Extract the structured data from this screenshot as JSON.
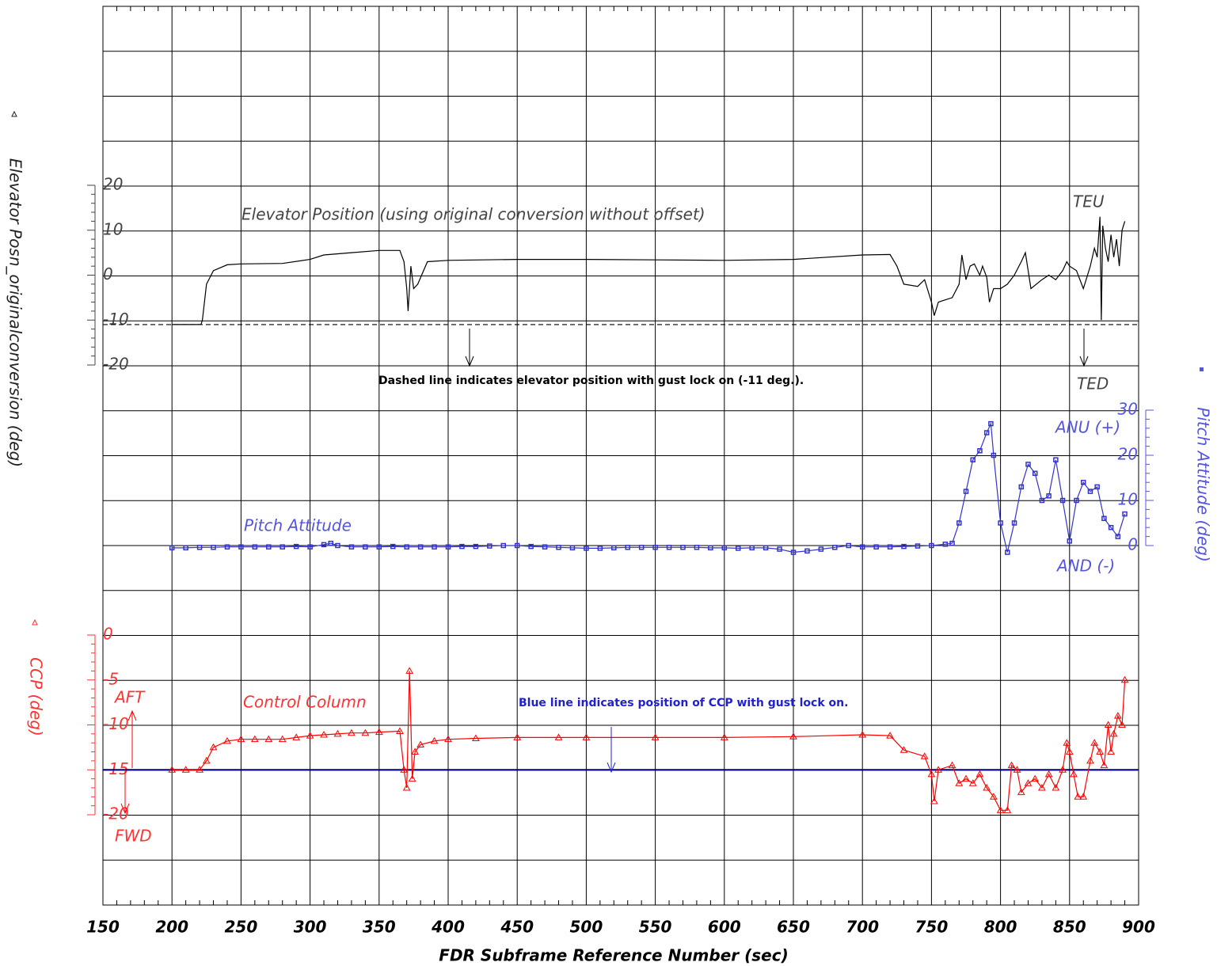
{
  "chart_data": {
    "type": "line",
    "x_label": "FDR Subframe Reference Number (sec)",
    "y_label": "Elevator Posn_originalconversion (deg)",
    "y2_label": "Pitch Attitude (deg)",
    "y3_label": "CCP (deg)",
    "xlim": [
      150,
      900
    ],
    "xticks": [
      150,
      200,
      250,
      300,
      350,
      400,
      450,
      500,
      550,
      600,
      650,
      700,
      750,
      800,
      850,
      900
    ],
    "ylim": [
      -20,
      20
    ],
    "yticks": [
      -20,
      -10,
      0,
      10,
      20
    ],
    "y2lim": [
      0,
      30
    ],
    "y2ticks": [
      0,
      10,
      20,
      30
    ],
    "y3lim": [
      -20,
      0
    ],
    "y3ticks": [
      -20,
      -15,
      -10,
      -5,
      0
    ],
    "grid": true,
    "annotations": {
      "teu": "TEU",
      "ted": "TED",
      "gust_note": "Dashed line indicates elevator position with gust lock on (-11 deg.).",
      "anu": "ANU (+)",
      "and": "AND (-)",
      "aft": "AFT",
      "fwd": "FWD",
      "ccp_note": "Blue line indicates position of CCP with gust lock on."
    },
    "reference_lines": [
      {
        "axis": "y",
        "value": -11,
        "color": "#000000",
        "style": "dashed"
      },
      {
        "axis": "y3",
        "value": -15,
        "color": "#000080",
        "style": "solid"
      }
    ],
    "series": [
      {
        "name": "Elevator Position (using original conversion without offset)",
        "color": "#000000",
        "axis": "y",
        "marker": "none",
        "x": [
          200,
          221,
          222,
          225,
          230,
          240,
          250,
          280,
          300,
          310,
          330,
          350,
          365,
          368,
          370,
          371,
          373,
          375,
          378,
          385,
          400,
          450,
          500,
          550,
          600,
          650,
          700,
          720,
          725,
          730,
          740,
          745,
          750,
          752,
          755,
          760,
          765,
          770,
          772,
          775,
          778,
          781,
          785,
          787,
          790,
          792,
          795,
          800,
          805,
          810,
          815,
          818,
          820,
          822,
          830,
          835,
          840,
          845,
          848,
          850,
          855,
          860,
          865,
          868,
          870,
          872,
          873,
          874,
          876,
          878,
          880,
          882,
          884,
          886,
          888,
          890
        ],
        "values": [
          -11,
          -11,
          -10,
          -2,
          1,
          2.3,
          2.5,
          2.6,
          3.5,
          4.5,
          5,
          5.5,
          5.5,
          3,
          -3,
          -8,
          2,
          -3,
          -2,
          3,
          3.3,
          3.5,
          3.5,
          3.4,
          3.3,
          3.5,
          4.5,
          4.6,
          2,
          -2,
          -2.5,
          -1,
          -6,
          -9,
          -6,
          -5.5,
          -5,
          -2,
          4.5,
          -1,
          2,
          2.5,
          0,
          2,
          -0.5,
          -6,
          -3,
          -3,
          -2,
          0,
          3,
          5,
          1,
          -3,
          -1,
          0,
          -1,
          1,
          3,
          2,
          1,
          -3,
          2,
          6,
          4,
          13,
          -10,
          11,
          6,
          3,
          9,
          4,
          8,
          2,
          10,
          12
        ]
      },
      {
        "name": "Pitch Attitude",
        "color": "#3333cc",
        "axis": "y2",
        "marker": "square",
        "x": [
          200,
          210,
          220,
          230,
          240,
          250,
          260,
          270,
          280,
          290,
          300,
          310,
          315,
          320,
          330,
          340,
          350,
          360,
          370,
          380,
          390,
          400,
          410,
          420,
          430,
          440,
          450,
          460,
          470,
          480,
          490,
          500,
          510,
          520,
          530,
          540,
          550,
          560,
          570,
          580,
          590,
          600,
          610,
          620,
          630,
          640,
          650,
          660,
          670,
          680,
          690,
          700,
          710,
          720,
          730,
          740,
          750,
          760,
          765,
          770,
          775,
          780,
          785,
          790,
          793,
          795,
          800,
          805,
          810,
          815,
          820,
          825,
          830,
          835,
          840,
          845,
          850,
          855,
          860,
          865,
          870,
          875,
          880,
          885,
          890
        ],
        "values": [
          -0.5,
          -0.5,
          -0.4,
          -0.4,
          -0.3,
          -0.3,
          -0.3,
          -0.3,
          -0.3,
          -0.2,
          -0.3,
          0.2,
          0.5,
          0,
          -0.3,
          -0.3,
          -0.3,
          -0.2,
          -0.3,
          -0.3,
          -0.3,
          -0.3,
          -0.2,
          -0.2,
          -0.1,
          0,
          0,
          -0.2,
          -0.3,
          -0.4,
          -0.5,
          -0.6,
          -0.6,
          -0.5,
          -0.4,
          -0.4,
          -0.4,
          -0.4,
          -0.4,
          -0.4,
          -0.5,
          -0.5,
          -0.6,
          -0.5,
          -0.5,
          -0.8,
          -1.5,
          -1.2,
          -0.8,
          -0.4,
          0,
          -0.3,
          -0.3,
          -0.3,
          -0.2,
          -0.1,
          0,
          0.3,
          0.5,
          5,
          12,
          19,
          21,
          25,
          27,
          20,
          5,
          -1.5,
          5,
          13,
          18,
          16,
          10,
          11,
          19,
          10,
          1,
          10,
          14,
          12,
          13,
          6,
          4,
          2,
          7
        ]
      },
      {
        "name": "Control Column",
        "color": "#ff0000",
        "axis": "y3",
        "marker": "triangle",
        "x": [
          200,
          210,
          220,
          225,
          230,
          240,
          250,
          260,
          270,
          280,
          290,
          300,
          310,
          320,
          330,
          340,
          350,
          365,
          368,
          370,
          372,
          374,
          376,
          380,
          390,
          400,
          420,
          450,
          480,
          500,
          550,
          600,
          650,
          700,
          720,
          730,
          745,
          750,
          752,
          755,
          765,
          770,
          775,
          780,
          785,
          790,
          795,
          800,
          805,
          808,
          812,
          815,
          820,
          825,
          830,
          835,
          840,
          845,
          848,
          850,
          853,
          856,
          860,
          865,
          868,
          872,
          875,
          878,
          880,
          882,
          885,
          888,
          890
        ],
        "values": [
          -15,
          -15,
          -15,
          -14,
          -12.5,
          -11.8,
          -11.6,
          -11.6,
          -11.6,
          -11.6,
          -11.4,
          -11.2,
          -11.1,
          -11,
          -10.9,
          -10.9,
          -10.8,
          -10.7,
          -15,
          -17,
          -4,
          -16,
          -13,
          -12.2,
          -11.8,
          -11.6,
          -11.5,
          -11.4,
          -11.4,
          -11.4,
          -11.4,
          -11.4,
          -11.3,
          -11.1,
          -11.2,
          -12.8,
          -13.5,
          -15.5,
          -18.5,
          -15,
          -14.5,
          -16.5,
          -16,
          -16.5,
          -15.5,
          -17,
          -18,
          -19.5,
          -19.5,
          -14.5,
          -15,
          -17.5,
          -16.5,
          -16,
          -17,
          -15.5,
          -17,
          -15,
          -12,
          -13,
          -15.5,
          -18,
          -18,
          -14,
          -12,
          -13,
          -14.5,
          -10,
          -13,
          -11,
          -9,
          -10,
          -5
        ]
      }
    ]
  }
}
